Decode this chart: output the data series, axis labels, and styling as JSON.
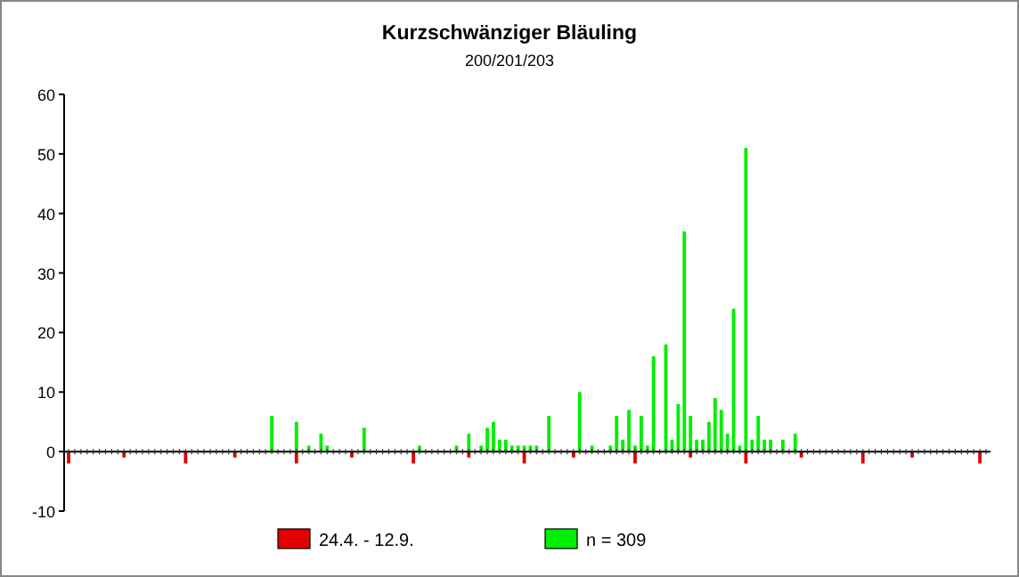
{
  "chart_data": {
    "type": "bar",
    "title": "Kurzschwänziger Bläuling",
    "subtitle": "200/201/203",
    "categories": [
      null,
      null,
      null,
      null,
      null,
      null,
      null,
      null,
      null,
      null,
      null,
      null,
      null,
      null,
      null,
      null,
      null,
      null,
      null,
      null,
      null,
      null,
      null,
      null,
      null,
      null,
      null,
      null,
      null,
      null,
      null,
      null,
      null,
      null,
      null,
      null,
      null,
      null,
      null,
      null,
      null,
      null,
      null,
      null,
      null,
      null,
      null,
      null,
      null,
      null,
      null,
      null,
      null,
      null,
      null,
      null,
      null,
      null,
      null,
      null,
      null,
      null,
      null,
      null,
      null,
      null,
      null,
      null,
      null,
      null,
      null,
      null,
      null,
      null,
      null,
      null,
      null,
      null,
      null,
      null,
      null,
      null,
      null,
      null,
      null,
      null,
      null,
      null,
      null,
      null,
      null,
      null,
      null,
      null,
      null,
      null,
      null,
      null,
      null,
      null,
      null,
      null,
      null,
      null,
      null,
      null,
      null,
      null,
      null,
      null,
      null,
      null,
      null,
      null,
      null,
      null,
      null,
      null,
      null,
      null,
      null,
      null,
      null,
      null,
      null,
      null,
      null,
      null,
      null,
      null,
      null,
      null,
      null,
      null,
      null,
      null,
      null,
      null,
      null,
      null,
      null,
      null,
      null,
      null,
      null,
      null,
      null,
      null,
      null,
      null
    ],
    "series": [
      {
        "name": "24.4. - 12.9.",
        "color": "#e00000",
        "values": [
          -2,
          null,
          null,
          null,
          null,
          null,
          null,
          null,
          null,
          -1,
          null,
          null,
          null,
          null,
          null,
          null,
          null,
          null,
          null,
          -2,
          null,
          null,
          null,
          null,
          null,
          null,
          null,
          -1,
          null,
          null,
          null,
          null,
          null,
          null,
          null,
          null,
          null,
          -2,
          null,
          null,
          null,
          null,
          null,
          null,
          null,
          null,
          -1,
          null,
          null,
          null,
          null,
          null,
          null,
          null,
          null,
          null,
          -2,
          null,
          null,
          null,
          null,
          null,
          null,
          null,
          null,
          -1,
          null,
          null,
          null,
          null,
          null,
          null,
          null,
          null,
          -2,
          null,
          null,
          null,
          null,
          null,
          null,
          null,
          -1,
          null,
          null,
          null,
          null,
          null,
          null,
          null,
          null,
          null,
          -2,
          null,
          null,
          null,
          null,
          null,
          null,
          null,
          null,
          -1,
          null,
          null,
          null,
          null,
          null,
          null,
          null,
          null,
          -2,
          null,
          null,
          null,
          null,
          null,
          null,
          null,
          null,
          -1,
          null,
          null,
          null,
          null,
          null,
          null,
          null,
          null,
          null,
          -2,
          null,
          null,
          null,
          null,
          null,
          null,
          null,
          -1,
          null,
          null,
          null,
          null,
          null,
          null,
          null,
          null,
          null,
          null,
          -2,
          null
        ]
      },
      {
        "name": "n = 309",
        "color": "#00ee00",
        "values": [
          0,
          0,
          0,
          0,
          0,
          0,
          0,
          0,
          0,
          0,
          0,
          0,
          0,
          0,
          0,
          0,
          0,
          0,
          0,
          0,
          0,
          0,
          0,
          0,
          0,
          0,
          0,
          0,
          0,
          0,
          0,
          0,
          0,
          6,
          0,
          0,
          0,
          5,
          0,
          1,
          0,
          3,
          1,
          0,
          0,
          0,
          0,
          0,
          4,
          0,
          0,
          0,
          0,
          0,
          0,
          0,
          0,
          1,
          0,
          0,
          0,
          0,
          0,
          1,
          0,
          3,
          0,
          1,
          4,
          5,
          2,
          2,
          1,
          1,
          1,
          1,
          1,
          0,
          6,
          0,
          0,
          0,
          0,
          10,
          0,
          1,
          0,
          0,
          1,
          6,
          2,
          7,
          1,
          6,
          1,
          16,
          0,
          18,
          2,
          8,
          37,
          6,
          2,
          2,
          5,
          9,
          7,
          3,
          24,
          1,
          51,
          2,
          6,
          2,
          2,
          0,
          2,
          0,
          3,
          0,
          0,
          0,
          0,
          0,
          0,
          0,
          0,
          0,
          0,
          0,
          0,
          0,
          0,
          0,
          0,
          0,
          0,
          0,
          0,
          0,
          0,
          0,
          0,
          0,
          0,
          0,
          0,
          0,
          0,
          0
        ]
      }
    ],
    "ylim": [
      -10,
      60
    ],
    "yticks": [
      -10,
      0,
      10,
      20,
      30,
      40,
      50,
      60
    ],
    "legend": "bottom"
  }
}
